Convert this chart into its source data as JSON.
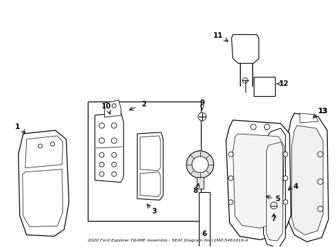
{
  "title": "2020 Ford Explorer FRAME Assembly - SEAT Diagram for L1MZ-5461019-A",
  "bg": "#ffffff",
  "lc": "black",
  "lw": 0.7,
  "fs": 7.5
}
